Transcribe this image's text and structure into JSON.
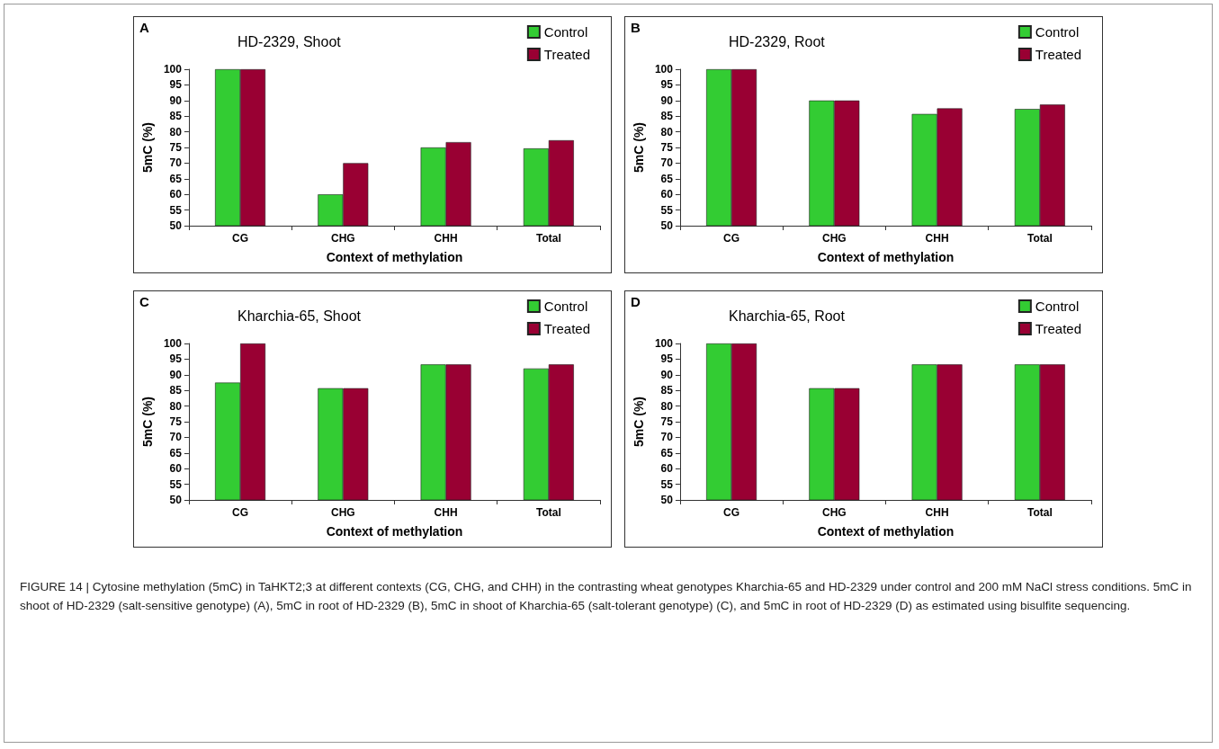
{
  "chart_data": [
    {
      "type": "bar",
      "title": "HD-2329, Shoot",
      "xlabel": "Context of methylation",
      "ylabel": "5mC (%)",
      "annotations": [
        "A"
      ],
      "categories": [
        "CG",
        "CHG",
        "CHH",
        "Total"
      ],
      "series": [
        {
          "name": "Control",
          "color": "#33cc33",
          "values": [
            100,
            60,
            75,
            74.7
          ]
        },
        {
          "name": "Treated",
          "color": "#990033",
          "values": [
            100,
            70,
            76.7,
            77.3
          ]
        }
      ],
      "ylim": [
        50,
        100
      ],
      "yticks": [
        50,
        55,
        60,
        65,
        70,
        75,
        80,
        85,
        90,
        95,
        100
      ],
      "grid": false,
      "legend": "top right"
    },
    {
      "type": "bar",
      "title": "HD-2329, Root",
      "xlabel": "Context of methylation",
      "ylabel": "5mC (%)",
      "annotations": [
        "B"
      ],
      "categories": [
        "CG",
        "CHG",
        "CHH",
        "Total"
      ],
      "series": [
        {
          "name": "Control",
          "color": "#33cc33",
          "values": [
            100,
            90,
            85.7,
            87.3
          ]
        },
        {
          "name": "Treated",
          "color": "#990033",
          "values": [
            100,
            90,
            87.5,
            88.7
          ]
        }
      ],
      "ylim": [
        50,
        100
      ],
      "yticks": [
        50,
        55,
        60,
        65,
        70,
        75,
        80,
        85,
        90,
        95,
        100
      ],
      "grid": false,
      "legend": "top right"
    },
    {
      "type": "bar",
      "title": "Kharchia-65, Shoot",
      "xlabel": "Context of methylation",
      "ylabel": "5mC (%)",
      "annotations": [
        "C"
      ],
      "categories": [
        "CG",
        "CHG",
        "CHH",
        "Total"
      ],
      "series": [
        {
          "name": "Control",
          "color": "#33cc33",
          "values": [
            87.5,
            85.7,
            93.3,
            92
          ]
        },
        {
          "name": "Treated",
          "color": "#990033",
          "values": [
            100,
            85.7,
            93.3,
            93.3
          ]
        }
      ],
      "ylim": [
        50,
        100
      ],
      "yticks": [
        50,
        55,
        60,
        65,
        70,
        75,
        80,
        85,
        90,
        95,
        100
      ],
      "grid": false,
      "legend": "top right"
    },
    {
      "type": "bar",
      "title": "Kharchia-65, Root",
      "xlabel": "Context of methylation",
      "ylabel": "5mC (%)",
      "annotations": [
        "D",
        "FIGURE 14 | Cytosine methylation (5mC) in TaHKT2;3 at different contexts (CG, CHG, and CHH) in the contrasting wheat genotypes Kharchia-65 and HD-2329 under control and 200 mM NaCl stress conditions. 5mC in shoot of HD-2329 (salt-sensitive genotype) (A), 5mC in root of HD-2329 (B), 5mC in shoot of Kharchia-65 (salt-tolerant genotype) (C), and 5mC in root of HD-2329 (D) as estimated using bisulfite sequencing."
      ],
      "categories": [
        "CG",
        "CHG",
        "CHH",
        "Total"
      ],
      "series": [
        {
          "name": "Control",
          "color": "#33cc33",
          "values": [
            100,
            85.7,
            93.3,
            93.3
          ]
        },
        {
          "name": "Treated",
          "color": "#990033",
          "values": [
            100,
            85.7,
            93.3,
            93.3
          ]
        }
      ],
      "ylim": [
        50,
        100
      ],
      "yticks": [
        50,
        55,
        60,
        65,
        70,
        75,
        80,
        85,
        90,
        95,
        100
      ],
      "grid": false,
      "legend": "top right"
    }
  ]
}
